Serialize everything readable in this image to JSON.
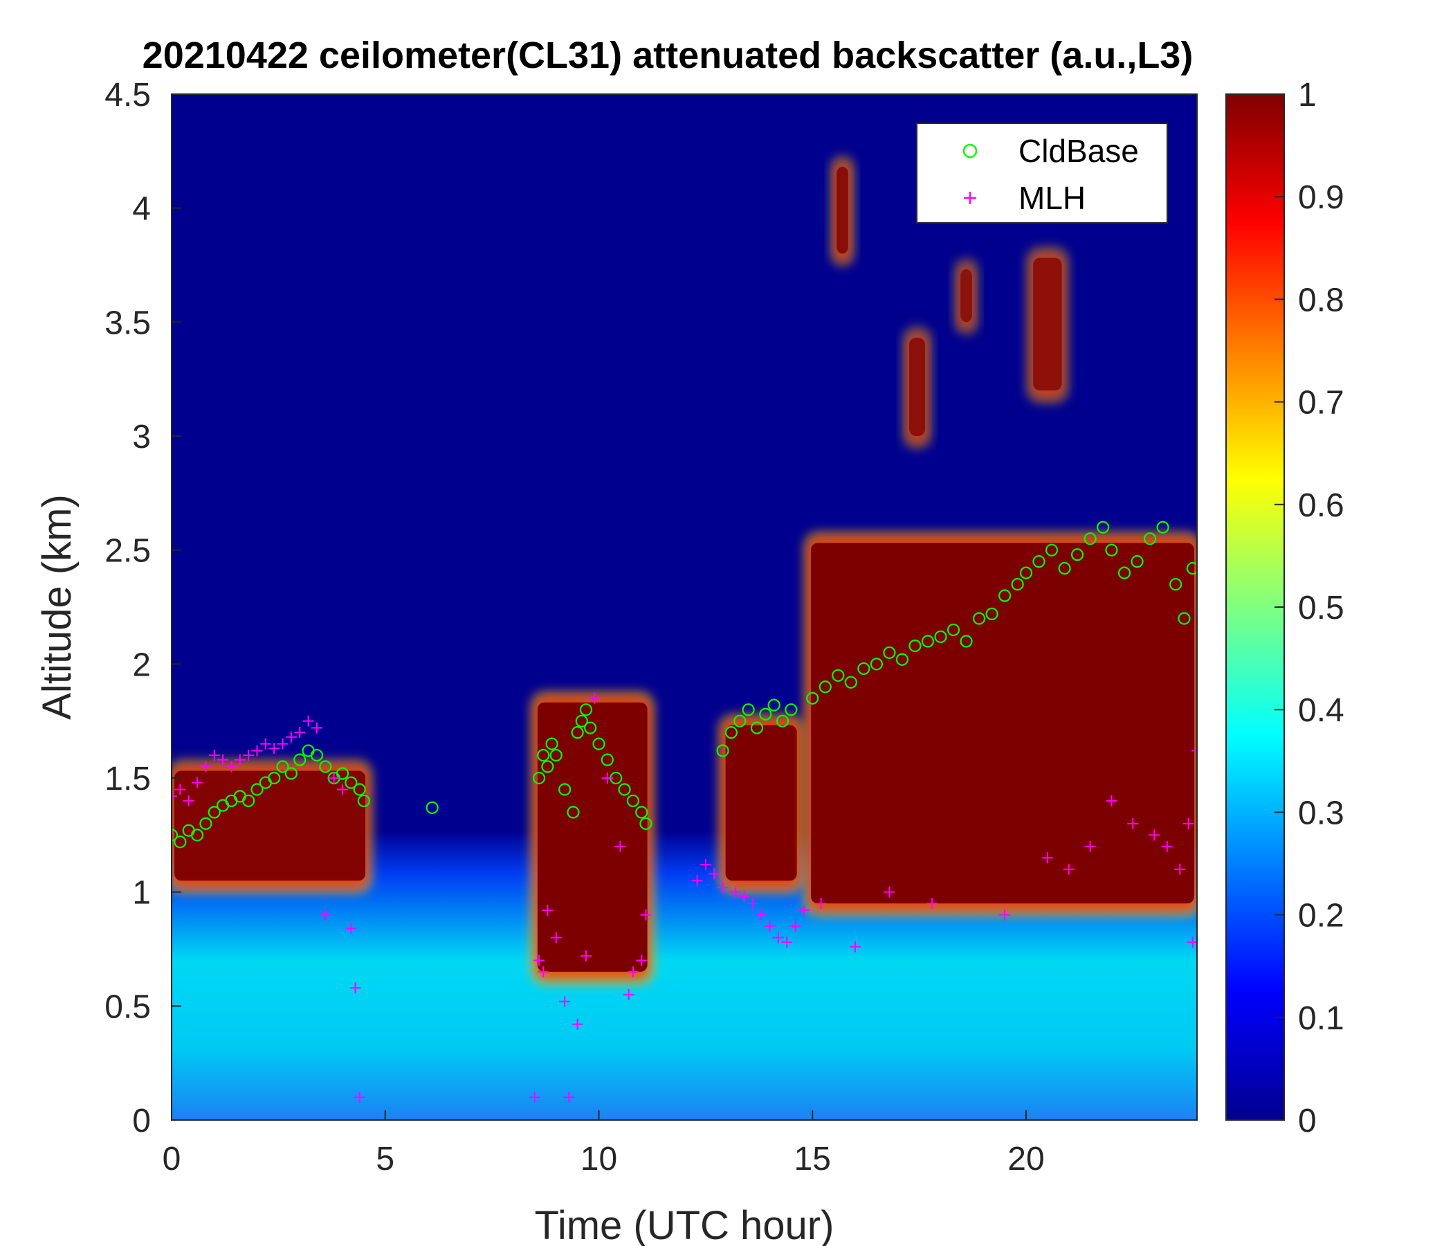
{
  "chart_data": {
    "type": "heatmap",
    "title": "20210422 ceilometer(CL31) attenuated backscatter (a.u.,L3)",
    "xlabel": "Time (UTC hour)",
    "ylabel": "Altitude (km)",
    "xlim": [
      0,
      24
    ],
    "ylim": [
      0,
      4.5
    ],
    "x_ticks": [
      "0",
      "5",
      "10",
      "15",
      "20"
    ],
    "y_ticks": [
      "0",
      "0.5",
      "1",
      "1.5",
      "2",
      "2.5",
      "3",
      "3.5",
      "4",
      "4.5"
    ],
    "colorbar": {
      "colormap": "jet",
      "range": [
        0,
        1
      ],
      "ticks": [
        "0",
        "0.1",
        "0.2",
        "0.3",
        "0.4",
        "0.5",
        "0.6",
        "0.7",
        "0.8",
        "0.9",
        "1"
      ]
    },
    "legend": {
      "position": "top-right"
    },
    "series": [
      {
        "name": "CldBase",
        "marker": "circle",
        "color": "#00ff00",
        "points": [
          [
            0.0,
            1.25
          ],
          [
            0.2,
            1.22
          ],
          [
            0.4,
            1.27
          ],
          [
            0.6,
            1.25
          ],
          [
            0.8,
            1.3
          ],
          [
            1.0,
            1.35
          ],
          [
            1.2,
            1.38
          ],
          [
            1.4,
            1.4
          ],
          [
            1.6,
            1.42
          ],
          [
            1.8,
            1.4
          ],
          [
            2.0,
            1.45
          ],
          [
            2.2,
            1.48
          ],
          [
            2.4,
            1.5
          ],
          [
            2.6,
            1.55
          ],
          [
            2.8,
            1.52
          ],
          [
            3.0,
            1.58
          ],
          [
            3.2,
            1.62
          ],
          [
            3.4,
            1.6
          ],
          [
            3.6,
            1.55
          ],
          [
            3.8,
            1.5
          ],
          [
            4.0,
            1.52
          ],
          [
            4.2,
            1.48
          ],
          [
            4.4,
            1.45
          ],
          [
            4.5,
            1.4
          ],
          [
            6.1,
            1.37
          ],
          [
            8.6,
            1.5
          ],
          [
            8.7,
            1.6
          ],
          [
            8.8,
            1.55
          ],
          [
            8.9,
            1.65
          ],
          [
            9.0,
            1.6
          ],
          [
            9.2,
            1.45
          ],
          [
            9.4,
            1.35
          ],
          [
            9.5,
            1.7
          ],
          [
            9.6,
            1.75
          ],
          [
            9.7,
            1.8
          ],
          [
            9.8,
            1.72
          ],
          [
            10.0,
            1.65
          ],
          [
            10.2,
            1.58
          ],
          [
            10.4,
            1.5
          ],
          [
            10.6,
            1.45
          ],
          [
            10.8,
            1.4
          ],
          [
            11.0,
            1.35
          ],
          [
            11.1,
            1.3
          ],
          [
            12.9,
            1.62
          ],
          [
            13.1,
            1.7
          ],
          [
            13.3,
            1.75
          ],
          [
            13.5,
            1.8
          ],
          [
            13.7,
            1.72
          ],
          [
            13.9,
            1.78
          ],
          [
            14.1,
            1.82
          ],
          [
            14.3,
            1.75
          ],
          [
            14.5,
            1.8
          ],
          [
            15.0,
            1.85
          ],
          [
            15.3,
            1.9
          ],
          [
            15.6,
            1.95
          ],
          [
            15.9,
            1.92
          ],
          [
            16.2,
            1.98
          ],
          [
            16.5,
            2.0
          ],
          [
            16.8,
            2.05
          ],
          [
            17.1,
            2.02
          ],
          [
            17.4,
            2.08
          ],
          [
            17.7,
            2.1
          ],
          [
            18.0,
            2.12
          ],
          [
            18.3,
            2.15
          ],
          [
            18.6,
            2.1
          ],
          [
            18.9,
            2.2
          ],
          [
            19.2,
            2.22
          ],
          [
            19.5,
            2.3
          ],
          [
            19.8,
            2.35
          ],
          [
            20.0,
            2.4
          ],
          [
            20.3,
            2.45
          ],
          [
            20.6,
            2.5
          ],
          [
            20.9,
            2.42
          ],
          [
            21.2,
            2.48
          ],
          [
            21.5,
            2.55
          ],
          [
            21.8,
            2.6
          ],
          [
            22.0,
            2.5
          ],
          [
            22.3,
            2.4
          ],
          [
            22.6,
            2.45
          ],
          [
            22.9,
            2.55
          ],
          [
            23.2,
            2.6
          ],
          [
            23.5,
            2.35
          ],
          [
            23.7,
            2.2
          ],
          [
            23.9,
            2.42
          ]
        ]
      },
      {
        "name": "MLH",
        "marker": "plus",
        "color": "#ff00ff",
        "points": [
          [
            0.0,
            1.42
          ],
          [
            0.2,
            1.45
          ],
          [
            0.4,
            1.4
          ],
          [
            0.6,
            1.48
          ],
          [
            0.8,
            1.55
          ],
          [
            1.0,
            1.6
          ],
          [
            1.2,
            1.58
          ],
          [
            1.4,
            1.55
          ],
          [
            1.6,
            1.58
          ],
          [
            1.8,
            1.6
          ],
          [
            2.0,
            1.62
          ],
          [
            2.2,
            1.65
          ],
          [
            2.4,
            1.63
          ],
          [
            2.6,
            1.65
          ],
          [
            2.8,
            1.68
          ],
          [
            3.0,
            1.7
          ],
          [
            3.2,
            1.75
          ],
          [
            3.4,
            1.72
          ],
          [
            3.6,
            0.9
          ],
          [
            3.8,
            1.5
          ],
          [
            4.0,
            1.45
          ],
          [
            4.2,
            0.84
          ],
          [
            4.3,
            0.58
          ],
          [
            4.4,
            0.1
          ],
          [
            8.5,
            0.1
          ],
          [
            8.6,
            0.7
          ],
          [
            8.7,
            0.65
          ],
          [
            8.8,
            0.92
          ],
          [
            9.0,
            0.8
          ],
          [
            9.2,
            0.52
          ],
          [
            9.3,
            0.1
          ],
          [
            9.5,
            0.42
          ],
          [
            9.7,
            0.72
          ],
          [
            9.9,
            1.85
          ],
          [
            10.2,
            1.5
          ],
          [
            10.5,
            1.2
          ],
          [
            10.7,
            0.55
          ],
          [
            10.8,
            0.65
          ],
          [
            11.0,
            0.7
          ],
          [
            11.1,
            0.9
          ],
          [
            12.3,
            1.05
          ],
          [
            12.5,
            1.12
          ],
          [
            12.7,
            1.08
          ],
          [
            12.9,
            1.02
          ],
          [
            13.2,
            1.0
          ],
          [
            13.4,
            0.98
          ],
          [
            13.6,
            0.95
          ],
          [
            13.8,
            0.9
          ],
          [
            14.0,
            0.85
          ],
          [
            14.2,
            0.8
          ],
          [
            14.4,
            0.78
          ],
          [
            14.6,
            0.85
          ],
          [
            14.8,
            0.92
          ],
          [
            15.2,
            0.95
          ],
          [
            16.0,
            0.76
          ],
          [
            16.8,
            1.0
          ],
          [
            17.8,
            0.95
          ],
          [
            19.5,
            0.9
          ],
          [
            20.5,
            1.15
          ],
          [
            21.0,
            1.1
          ],
          [
            21.5,
            1.2
          ],
          [
            22.0,
            1.4
          ],
          [
            22.5,
            1.3
          ],
          [
            23.0,
            1.25
          ],
          [
            23.3,
            1.2
          ],
          [
            23.6,
            1.1
          ],
          [
            23.8,
            1.3
          ],
          [
            23.9,
            0.78
          ],
          [
            24.0,
            1.62
          ]
        ]
      }
    ],
    "features": [
      {
        "x0": 0.0,
        "x1": 4.6,
        "base": 1.05,
        "top": 1.55,
        "intensity": 0.95
      },
      {
        "x0": 8.5,
        "x1": 11.2,
        "base": 0.65,
        "top": 1.85,
        "intensity": 1.0
      },
      {
        "x0": 12.9,
        "x1": 14.7,
        "base": 1.05,
        "top": 1.75,
        "intensity": 1.0
      },
      {
        "x0": 14.9,
        "x1": 24.0,
        "base": 0.95,
        "top": 2.55,
        "intensity": 1.0
      },
      {
        "x0": 15.5,
        "x1": 15.9,
        "base": 3.8,
        "top": 4.2,
        "intensity": 0.8
      },
      {
        "x0": 17.2,
        "x1": 17.7,
        "base": 3.0,
        "top": 3.45,
        "intensity": 0.75
      },
      {
        "x0": 18.4,
        "x1": 18.8,
        "base": 3.5,
        "top": 3.75,
        "intensity": 0.7
      },
      {
        "x0": 20.1,
        "x1": 20.9,
        "base": 3.2,
        "top": 3.8,
        "intensity": 0.75
      }
    ]
  }
}
